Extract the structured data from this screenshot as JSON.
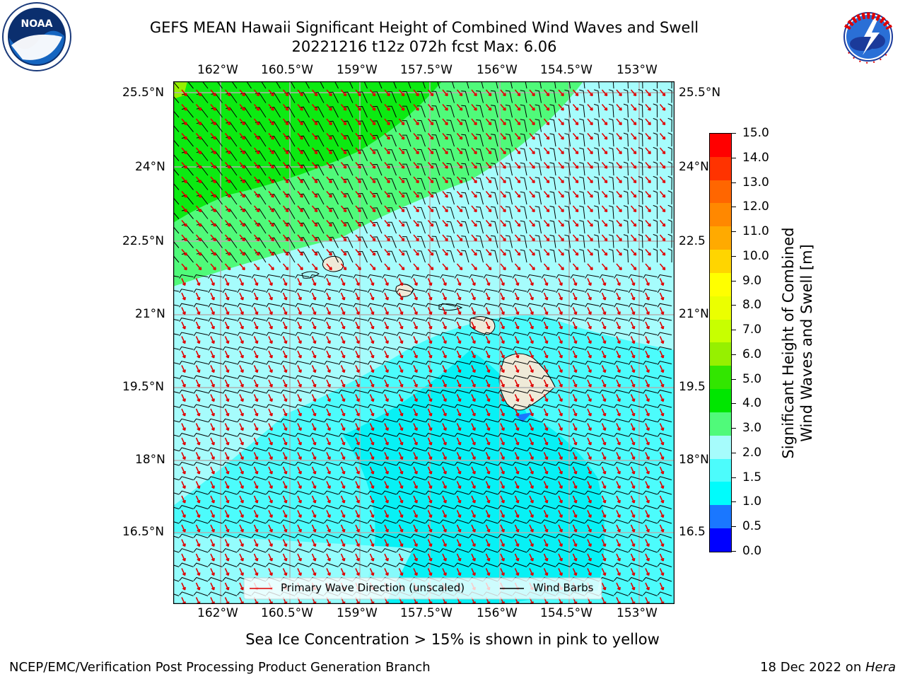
{
  "title": {
    "line1": "GEFS MEAN Hawaii Significant Height of Combined Wind Waves and Swell",
    "line2": "20221216 t12z 072h fcst   Max: 6.06"
  },
  "logos": {
    "noaa": {
      "text": "NOAA",
      "ring_text": "NATIONAL OCEANIC AND ATMOSPHERIC ADMINISTRATION · U.S. DEPARTMENT OF COMMERCE"
    },
    "nws": {
      "ring_text": "NATIONAL WEATHER SERVICE"
    }
  },
  "map": {
    "lon_labels": [
      "162°W",
      "160.5°W",
      "159°W",
      "157.5°W",
      "156°W",
      "154.5°W",
      "153°W"
    ],
    "lat_labels": [
      "25.5°N",
      "24°N",
      "22.5°N",
      "21°N",
      "19.5°N",
      "18°N",
      "16.5°N"
    ],
    "lat_labels_right": [
      "25.5°N",
      "24°N",
      "22.5",
      "21°N",
      "19.5",
      "18°N",
      "16.5"
    ],
    "legend": {
      "wave_label": "Primary Wave Direction (unscaled)",
      "barb_label": "Wind Barbs"
    }
  },
  "colorbar": {
    "label_line1": "Significant Height of Combined",
    "label_line2": "Wind Waves and Swell [m]",
    "ticks": [
      "15.0",
      "14.0",
      "13.0",
      "12.0",
      "11.0",
      "10.0",
      "9.0",
      "8.0",
      "7.0",
      "6.0",
      "5.0",
      "4.0",
      "3.0",
      "2.0",
      "1.5",
      "1.0",
      "0.5",
      "0.0"
    ],
    "colors": [
      "#ff0000",
      "#ff3300",
      "#ff6600",
      "#ff8800",
      "#ffaa00",
      "#ffd500",
      "#ffff00",
      "#ebff00",
      "#c8ff00",
      "#96f000",
      "#32e600",
      "#00e600",
      "#50fa7a",
      "#a6fcfc",
      "#4cfcfc",
      "#00fcfc",
      "#1a77ff",
      "#0000ff"
    ]
  },
  "note": "Sea Ice Concentration > 15% is shown in pink to yellow",
  "footer": {
    "left": "NCEP/EMC/Verification Post Processing Product Generation Branch",
    "right_prefix": "18 Dec 2022 on ",
    "right_host": "Hera"
  }
}
